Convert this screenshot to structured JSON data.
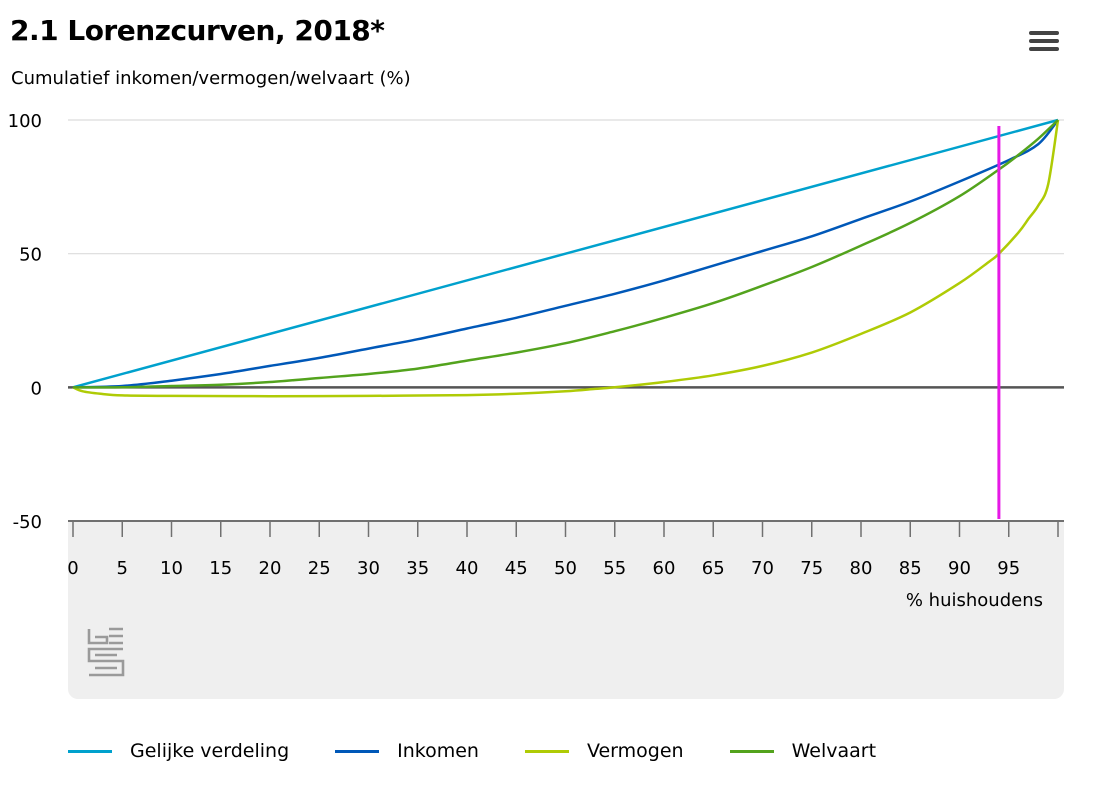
{
  "header": {
    "title": "2.1 Lorenzcurven, 2018*",
    "menu_icon": "hamburger-menu-icon"
  },
  "logo_icon": "cbs-logo-icon",
  "chart_data": {
    "type": "line",
    "title": "2.1 Lorenzcurven, 2018*",
    "ylabel": "Cumulatief inkomen/vermogen/welvaart (%)",
    "xlabel": "% huishoudens",
    "xlim": [
      0,
      100
    ],
    "ylim": [
      -50,
      100
    ],
    "x_ticks": [
      0,
      5,
      10,
      15,
      20,
      25,
      30,
      35,
      40,
      45,
      50,
      55,
      60,
      65,
      70,
      75,
      80,
      85,
      90,
      95
    ],
    "y_ticks": [
      100,
      50,
      0,
      -50
    ],
    "grid": true,
    "legend_position": "bottom",
    "marker": {
      "x": 94,
      "color": "#e619e6"
    },
    "series": [
      {
        "name": "Gelijke verdeling",
        "color": "#00a1cd",
        "x": [
          0,
          100
        ],
        "y": [
          0,
          100
        ]
      },
      {
        "name": "Inkomen",
        "color": "#0058b8",
        "x": [
          0,
          5,
          10,
          15,
          20,
          25,
          30,
          35,
          40,
          45,
          50,
          55,
          60,
          65,
          70,
          75,
          80,
          85,
          90,
          95,
          98,
          100
        ],
        "y": [
          0,
          0.5,
          2.5,
          5,
          8,
          11,
          14.5,
          18,
          22,
          26,
          30.5,
          35,
          40,
          45.5,
          51,
          56.5,
          63,
          69.5,
          77,
          85,
          91,
          100
        ]
      },
      {
        "name": "Vermogen",
        "color": "#afcb05",
        "x": [
          0,
          1,
          3,
          5,
          10,
          20,
          30,
          40,
          45,
          50,
          53,
          55,
          60,
          65,
          70,
          75,
          80,
          85,
          90,
          93,
          94,
          96,
          97,
          98,
          99,
          100
        ],
        "y": [
          0,
          -1.5,
          -2.5,
          -3,
          -3.2,
          -3.3,
          -3.2,
          -2.9,
          -2.4,
          -1.5,
          -0.6,
          0,
          2,
          4.5,
          8,
          13,
          20,
          28,
          39,
          47,
          50,
          58,
          63,
          68,
          76,
          100
        ]
      },
      {
        "name": "Welvaart",
        "color": "#53a31d",
        "x": [
          0,
          5,
          10,
          15,
          20,
          25,
          30,
          35,
          40,
          45,
          50,
          55,
          60,
          65,
          70,
          75,
          80,
          85,
          90,
          94,
          96,
          98,
          100
        ],
        "y": [
          0,
          0,
          0.5,
          1,
          2,
          3.5,
          5,
          7,
          10,
          13,
          16.5,
          21,
          26,
          31.5,
          38,
          45,
          53,
          61.5,
          71.5,
          81.5,
          87,
          93,
          100
        ]
      }
    ]
  }
}
